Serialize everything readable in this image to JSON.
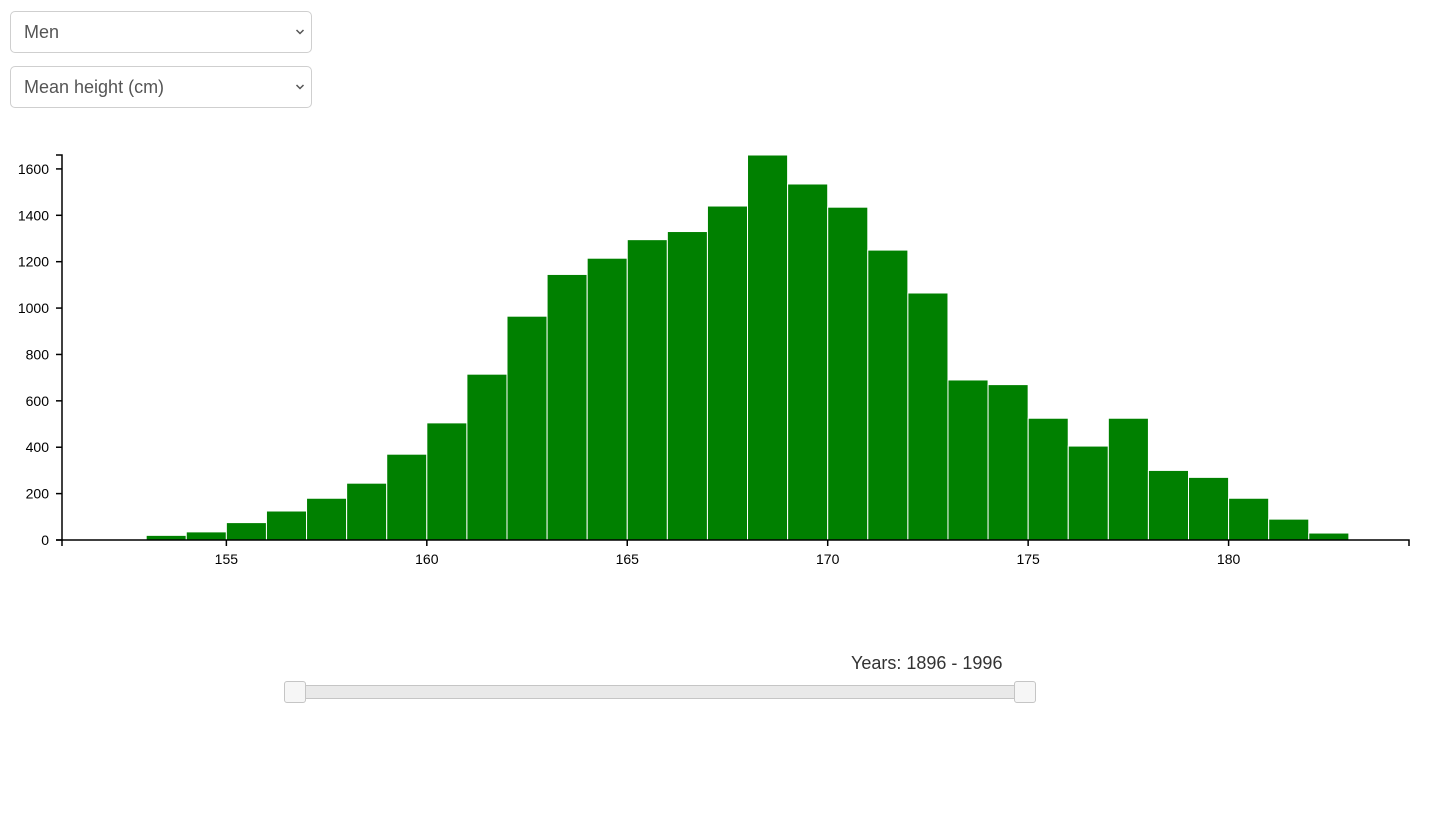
{
  "controls": {
    "gender_select": {
      "value": "Men"
    },
    "metric_select": {
      "value": "Mean height (cm)"
    }
  },
  "slider": {
    "label": "Years: 1896 - 1996",
    "min_year": 1896,
    "max_year": 1996,
    "range_min": 1896,
    "range_max": 1996
  },
  "colors": {
    "bar": "#008000",
    "axis": "#000000"
  },
  "chart_data": {
    "type": "bar",
    "title": "",
    "xlabel": "",
    "ylabel": "",
    "xlim": [
      150.9,
      184.5
    ],
    "ylim": [
      0,
      1660
    ],
    "xticks": [
      155,
      160,
      165,
      170,
      175,
      180
    ],
    "yticks": [
      0,
      200,
      400,
      600,
      800,
      1000,
      1200,
      1400,
      1600
    ],
    "grid": false,
    "bins": [
      {
        "x0": 153,
        "x1": 154,
        "value": 20
      },
      {
        "x0": 154,
        "x1": 155,
        "value": 35
      },
      {
        "x0": 155,
        "x1": 156,
        "value": 75
      },
      {
        "x0": 156,
        "x1": 157,
        "value": 125
      },
      {
        "x0": 157,
        "x1": 158,
        "value": 180
      },
      {
        "x0": 158,
        "x1": 159,
        "value": 245
      },
      {
        "x0": 159,
        "x1": 160,
        "value": 370
      },
      {
        "x0": 160,
        "x1": 161,
        "value": 505
      },
      {
        "x0": 161,
        "x1": 162,
        "value": 715
      },
      {
        "x0": 162,
        "x1": 163,
        "value": 965
      },
      {
        "x0": 163,
        "x1": 164,
        "value": 1145
      },
      {
        "x0": 164,
        "x1": 165,
        "value": 1215
      },
      {
        "x0": 165,
        "x1": 166,
        "value": 1295
      },
      {
        "x0": 166,
        "x1": 167,
        "value": 1330
      },
      {
        "x0": 167,
        "x1": 168,
        "value": 1440
      },
      {
        "x0": 168,
        "x1": 169,
        "value": 1660
      },
      {
        "x0": 169,
        "x1": 170,
        "value": 1535
      },
      {
        "x0": 170,
        "x1": 171,
        "value": 1435
      },
      {
        "x0": 171,
        "x1": 172,
        "value": 1250
      },
      {
        "x0": 172,
        "x1": 173,
        "value": 1065
      },
      {
        "x0": 173,
        "x1": 174,
        "value": 690
      },
      {
        "x0": 174,
        "x1": 175,
        "value": 670
      },
      {
        "x0": 175,
        "x1": 176,
        "value": 525
      },
      {
        "x0": 176,
        "x1": 177,
        "value": 405
      },
      {
        "x0": 177,
        "x1": 178,
        "value": 525
      },
      {
        "x0": 178,
        "x1": 179,
        "value": 300
      },
      {
        "x0": 179,
        "x1": 180,
        "value": 270
      },
      {
        "x0": 180,
        "x1": 181,
        "value": 180
      },
      {
        "x0": 181,
        "x1": 182,
        "value": 90
      },
      {
        "x0": 182,
        "x1": 183,
        "value": 30
      }
    ]
  }
}
